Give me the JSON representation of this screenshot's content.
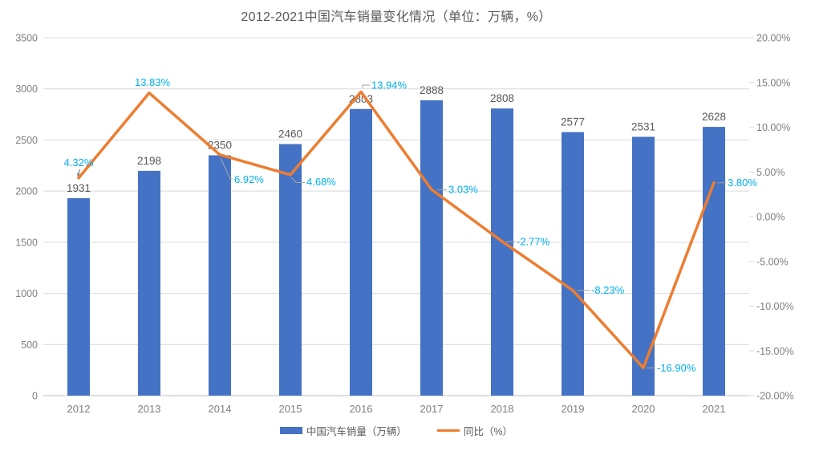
{
  "chart_data": {
    "type": "bar+line",
    "title": "2012-2021中国汽车销量变化情况（单位：万辆，%）",
    "categories": [
      "2012",
      "2013",
      "2014",
      "2015",
      "2016",
      "2017",
      "2018",
      "2019",
      "2020",
      "2021"
    ],
    "series": [
      {
        "name": "中国汽车销量（万辆）",
        "type": "bar",
        "axis": "left",
        "color": "#4472C4",
        "values": [
          1931,
          2198,
          2350,
          2460,
          2803,
          2888,
          2808,
          2577,
          2531,
          2628
        ],
        "labels": [
          "1931",
          "2198",
          "2350",
          "2460",
          "2803",
          "2888",
          "2808",
          "2577",
          "2531",
          "2628"
        ],
        "label_color": "#595959"
      },
      {
        "name": "同比（%）",
        "type": "line",
        "axis": "right",
        "color": "#ED7D31",
        "values": [
          4.32,
          13.83,
          6.92,
          4.68,
          13.94,
          3.03,
          -2.77,
          -8.23,
          -16.9,
          3.8
        ],
        "labels": [
          "4.32%",
          "13.83%",
          "6.92%",
          "4.68%",
          "13.94%",
          "3.03%",
          "-2.77%",
          "-8.23%",
          "-16.90%",
          "3.80%"
        ],
        "label_color": "#00B0F0"
      }
    ],
    "left_axis": {
      "min": 0,
      "max": 3500,
      "step": 500,
      "ticks": [
        "0",
        "500",
        "1000",
        "1500",
        "2000",
        "2500",
        "3000",
        "3500"
      ]
    },
    "right_axis": {
      "min": -20,
      "max": 20,
      "step": 5,
      "ticks": [
        "-20.00%",
        "-15.00%",
        "-10.00%",
        "-5.00%",
        "0.00%",
        "5.00%",
        "10.00%",
        "15.00%",
        "20.00%"
      ]
    },
    "grid": true,
    "legend_position": "bottom",
    "colors": {
      "grid": "#D9D9D9",
      "axis_line": "#BFBFBF",
      "axis_text": "#7F7F7F",
      "leader": "#A6A6A6",
      "title_text": "#595959"
    }
  }
}
